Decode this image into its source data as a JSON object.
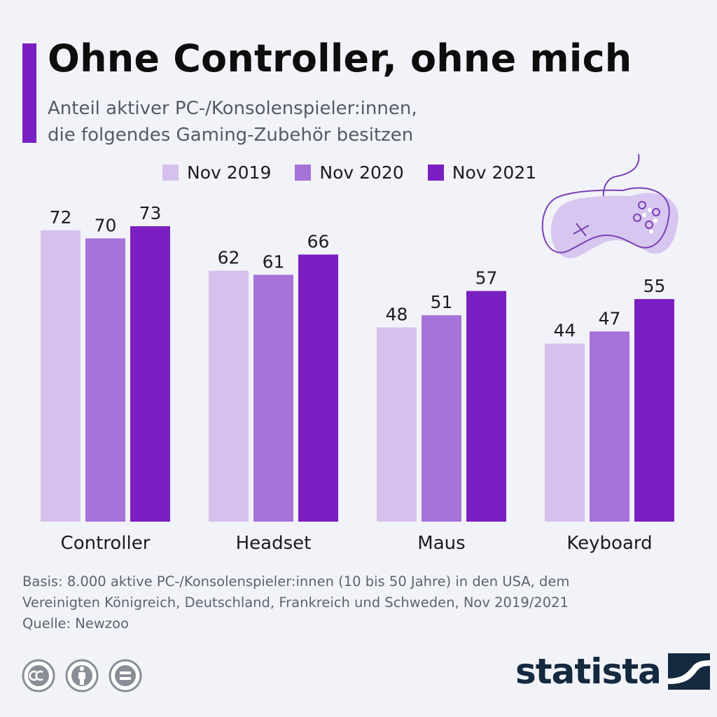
{
  "header": {
    "title": "Ohne Controller, ohne mich",
    "subtitle_line1": "Anteil aktiver PC-/Konsolenspieler:innen,",
    "subtitle_line2": "die folgendes Gaming-Zubehör besitzen"
  },
  "colors": {
    "accent": "#7a1fc1",
    "series": [
      "#d6c1ec",
      "#a673d8",
      "#7a1fc1"
    ],
    "brand": "#15293f"
  },
  "chart_data": {
    "type": "bar",
    "categories": [
      "Controller",
      "Headset",
      "Maus",
      "Keyboard"
    ],
    "series": [
      {
        "name": "Nov 2019",
        "values": [
          72,
          62,
          48,
          44
        ]
      },
      {
        "name": "Nov 2020",
        "values": [
          70,
          61,
          51,
          47
        ]
      },
      {
        "name": "Nov 2021",
        "values": [
          73,
          66,
          57,
          55
        ]
      }
    ],
    "ylim": [
      0,
      100
    ],
    "grid": false,
    "legend": "top",
    "data_labels": true
  },
  "footer": {
    "basis_line1": "Basis: 8.000 aktive PC-/Konsolenspieler:innen (10 bis 50 Jahre) in den USA, dem",
    "basis_line2": "Vereinigten Königreich, Deutschland, Frankreich und Schweden, Nov 2019/2021",
    "source": "Quelle: Newzoo",
    "brand": "statista"
  },
  "icons": {
    "decoration": "gamepad-icon",
    "license": [
      "cc-icon",
      "attribution-icon",
      "no-derivatives-icon"
    ],
    "brand": "statista-logo-icon"
  }
}
